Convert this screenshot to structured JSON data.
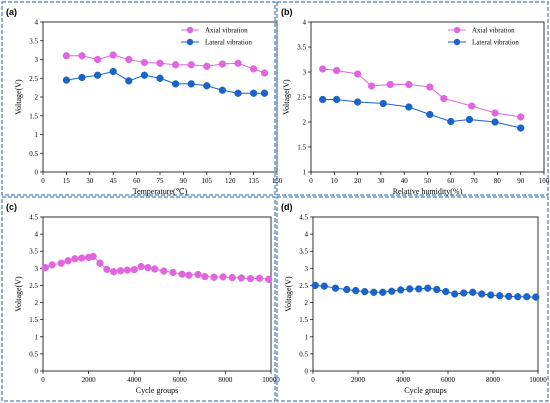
{
  "colors": {
    "axial": "#e066e0",
    "lateral": "#1b63c8",
    "border": "#1f5fa8"
  },
  "chart_data": [
    {
      "id": "a",
      "tag": "(a)",
      "type": "line",
      "xlabel": "Temperature(℃)",
      "ylabel": "Voltage(V)",
      "xlim": [
        0,
        150
      ],
      "ylim": [
        0,
        4
      ],
      "xticks": [
        0,
        15,
        30,
        45,
        60,
        75,
        90,
        105,
        120,
        135,
        150
      ],
      "yticks": [
        0,
        0.5,
        1,
        1.5,
        2,
        2.5,
        3,
        3.5,
        4
      ],
      "ytick_labels": [
        "0",
        "0.5",
        "1",
        "1.5",
        "2",
        "2.5",
        "3",
        "3.5",
        "4"
      ],
      "legend": "top-right",
      "series": [
        {
          "name": "Axial vibration",
          "color": "#e066e0",
          "x": [
            15,
            25,
            35,
            45,
            55,
            65,
            75,
            85,
            95,
            105,
            115,
            125,
            135,
            142
          ],
          "y": [
            3.1,
            3.1,
            3.0,
            3.12,
            3.0,
            2.92,
            2.9,
            2.86,
            2.86,
            2.82,
            2.88,
            2.9,
            2.75,
            2.64
          ]
        },
        {
          "name": "Lateral vibration",
          "color": "#1b63c8",
          "x": [
            15,
            25,
            35,
            45,
            55,
            65,
            75,
            85,
            95,
            105,
            115,
            125,
            135,
            142
          ],
          "y": [
            2.45,
            2.52,
            2.58,
            2.68,
            2.43,
            2.58,
            2.5,
            2.35,
            2.35,
            2.3,
            2.18,
            2.1,
            2.1,
            2.1
          ]
        }
      ]
    },
    {
      "id": "b",
      "tag": "(b)",
      "type": "line",
      "xlabel": "Relative humidity(%)",
      "ylabel": "Voltage(V)",
      "xlim": [
        0,
        100
      ],
      "ylim": [
        1,
        4
      ],
      "xticks": [
        0,
        10,
        20,
        30,
        40,
        50,
        60,
        70,
        80,
        90,
        100
      ],
      "yticks": [
        1,
        1.5,
        2,
        2.5,
        3,
        3.5,
        4
      ],
      "ytick_labels": [
        "1",
        "1.5",
        "2",
        "2.5",
        "3",
        "3.5",
        "4"
      ],
      "legend": "top-right",
      "series": [
        {
          "name": "Axial vibration",
          "color": "#e066e0",
          "x": [
            5,
            11,
            20,
            26,
            34,
            42,
            51,
            57,
            69,
            79,
            90
          ],
          "y": [
            3.06,
            3.03,
            2.96,
            2.72,
            2.75,
            2.75,
            2.7,
            2.47,
            2.32,
            2.18,
            2.1
          ]
        },
        {
          "name": "Lateral vibration",
          "color": "#1b63c8",
          "x": [
            5,
            11,
            20,
            31,
            42,
            51,
            60,
            68,
            79,
            90
          ],
          "y": [
            2.45,
            2.45,
            2.4,
            2.37,
            2.3,
            2.15,
            2.01,
            2.05,
            2.0,
            1.88
          ]
        }
      ]
    },
    {
      "id": "c",
      "tag": "(c)",
      "type": "line",
      "xlabel": "Cycle groups",
      "ylabel": "Voltage(V)",
      "xlim": [
        0,
        10000
      ],
      "ylim": [
        0,
        4.5
      ],
      "xticks": [
        0,
        2000,
        4000,
        6000,
        8000,
        10000
      ],
      "yticks": [
        0,
        0.5,
        1,
        1.5,
        2,
        2.5,
        3,
        3.5,
        4,
        4.5
      ],
      "ytick_labels": [
        "0",
        "0.5",
        "1",
        "1.5",
        "2",
        "2.5",
        "3",
        "3.5",
        "4",
        "4.5"
      ],
      "legend": "none",
      "series": [
        {
          "name": "",
          "color": "#e066e0",
          "x": [
            100,
            400,
            800,
            1100,
            1400,
            1700,
            2000,
            2200,
            2500,
            2800,
            3100,
            3400,
            3700,
            4000,
            4300,
            4600,
            4900,
            5300,
            5700,
            6100,
            6400,
            6800,
            7100,
            7500,
            7900,
            8300,
            8700,
            9100,
            9500,
            9900
          ],
          "y": [
            3.02,
            3.1,
            3.15,
            3.22,
            3.28,
            3.3,
            3.32,
            3.35,
            3.15,
            2.97,
            2.9,
            2.93,
            2.95,
            2.96,
            3.05,
            3.02,
            2.98,
            2.92,
            2.88,
            2.83,
            2.8,
            2.82,
            2.76,
            2.74,
            2.75,
            2.73,
            2.72,
            2.7,
            2.71,
            2.68
          ]
        }
      ]
    },
    {
      "id": "d",
      "tag": "(d)",
      "type": "line",
      "xlabel": "Cycle groups",
      "ylabel": "Voltage(V)",
      "xlim": [
        0,
        10000
      ],
      "ylim": [
        0,
        4.5
      ],
      "xticks": [
        0,
        2000,
        4000,
        6000,
        8000,
        10000
      ],
      "yticks": [
        0,
        0.5,
        1,
        1.5,
        2,
        2.5,
        3,
        3.5,
        4,
        4.5
      ],
      "ytick_labels": [
        "0",
        "0.5",
        "1",
        "1.5",
        "2",
        "2.5",
        "3",
        "3.5",
        "4",
        "4.5"
      ],
      "legend": "none",
      "series": [
        {
          "name": "",
          "color": "#1b63c8",
          "x": [
            100,
            500,
            1000,
            1500,
            1900,
            2300,
            2700,
            3100,
            3500,
            3900,
            4300,
            4700,
            5100,
            5500,
            5900,
            6300,
            6700,
            7100,
            7500,
            7900,
            8300,
            8700,
            9100,
            9500,
            9900
          ],
          "y": [
            2.5,
            2.48,
            2.42,
            2.38,
            2.35,
            2.32,
            2.3,
            2.3,
            2.33,
            2.37,
            2.4,
            2.4,
            2.42,
            2.38,
            2.32,
            2.25,
            2.28,
            2.3,
            2.25,
            2.22,
            2.2,
            2.18,
            2.17,
            2.17,
            2.16
          ]
        }
      ]
    }
  ]
}
